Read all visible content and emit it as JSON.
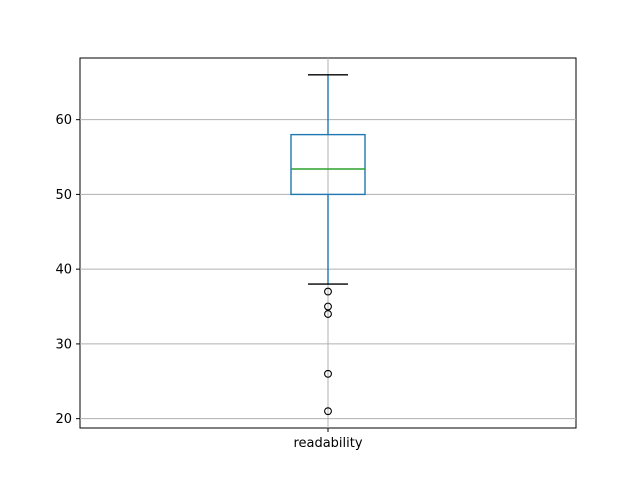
{
  "figure": {
    "background": "#ffffff",
    "plot_background": "#ffffff",
    "spine_color": "#000000",
    "grid_color": "#b0b0b0",
    "tick_color": "#000000"
  },
  "chart_data": {
    "type": "boxplot",
    "title": "",
    "xlabel": "",
    "ylabel": "",
    "categories": [
      "readability"
    ],
    "series": [
      {
        "name": "readability",
        "whisker_high": 66,
        "q3": 58,
        "median": 53.4,
        "q1": 50,
        "whisker_low": 38,
        "outliers": [
          37,
          35,
          34,
          26,
          21
        ]
      }
    ],
    "yticks": [
      20,
      30,
      40,
      50,
      60
    ],
    "ylim": [
      18.75,
      68.25
    ],
    "grid": true,
    "legend": "none",
    "colors": {
      "box": "#1f77b4",
      "whisker": "#1f77b4",
      "cap": "#000000",
      "median": "#2ca02c",
      "flier": "#000000"
    }
  }
}
